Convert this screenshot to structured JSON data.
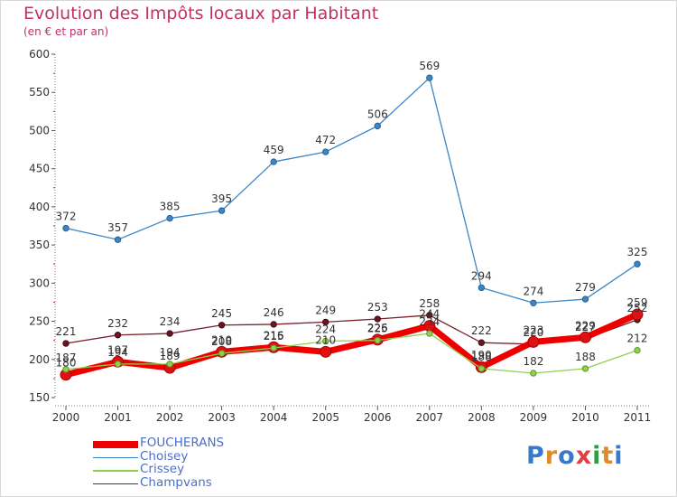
{
  "header": {
    "title": "Evolution des Impôts locaux par Habitant",
    "subtitle": "(en € et par an)"
  },
  "logo": {
    "text": "Proxiti",
    "letter_colors": [
      "#3a78c8",
      "#e08a2a",
      "#3a78c8",
      "#e04040",
      "#2e9e44",
      "#e08a2a",
      "#3a78c8"
    ]
  },
  "chart_data": {
    "type": "line",
    "title": "Evolution des Impôts locaux par Habitant",
    "subtitle": "(en € et par an)",
    "xlabel": "",
    "ylabel": "",
    "ylim": [
      150,
      600
    ],
    "yticks": [
      150,
      200,
      250,
      300,
      350,
      400,
      450,
      500,
      550,
      600
    ],
    "categories": [
      "2000",
      "2001",
      "2002",
      "2003",
      "2004",
      "2005",
      "2006",
      "2007",
      "2008",
      "2009",
      "2010",
      "2011"
    ],
    "grid": false,
    "legend_position": "bottom-left",
    "series": [
      {
        "name": "FOUCHERANS",
        "color": "#ee0000",
        "values": [
          180,
          197,
          189,
          210,
          216,
          210,
          226,
          244,
          190,
          223,
          229,
          259
        ]
      },
      {
        "name": "Choisey",
        "color": "#3d86c6",
        "values": [
          372,
          357,
          385,
          395,
          459,
          472,
          506,
          569,
          294,
          274,
          279,
          325
        ]
      },
      {
        "name": "Crissey",
        "color": "#8fd14f",
        "values": [
          187,
          194,
          194,
          208,
          215,
          224,
          225,
          234,
          188,
          182,
          188,
          212
        ]
      },
      {
        "name": "Champvans",
        "color": "#7a1f2b",
        "values": [
          221,
          232,
          234,
          245,
          246,
          249,
          253,
          258,
          222,
          220,
          227,
          252
        ]
      }
    ]
  }
}
